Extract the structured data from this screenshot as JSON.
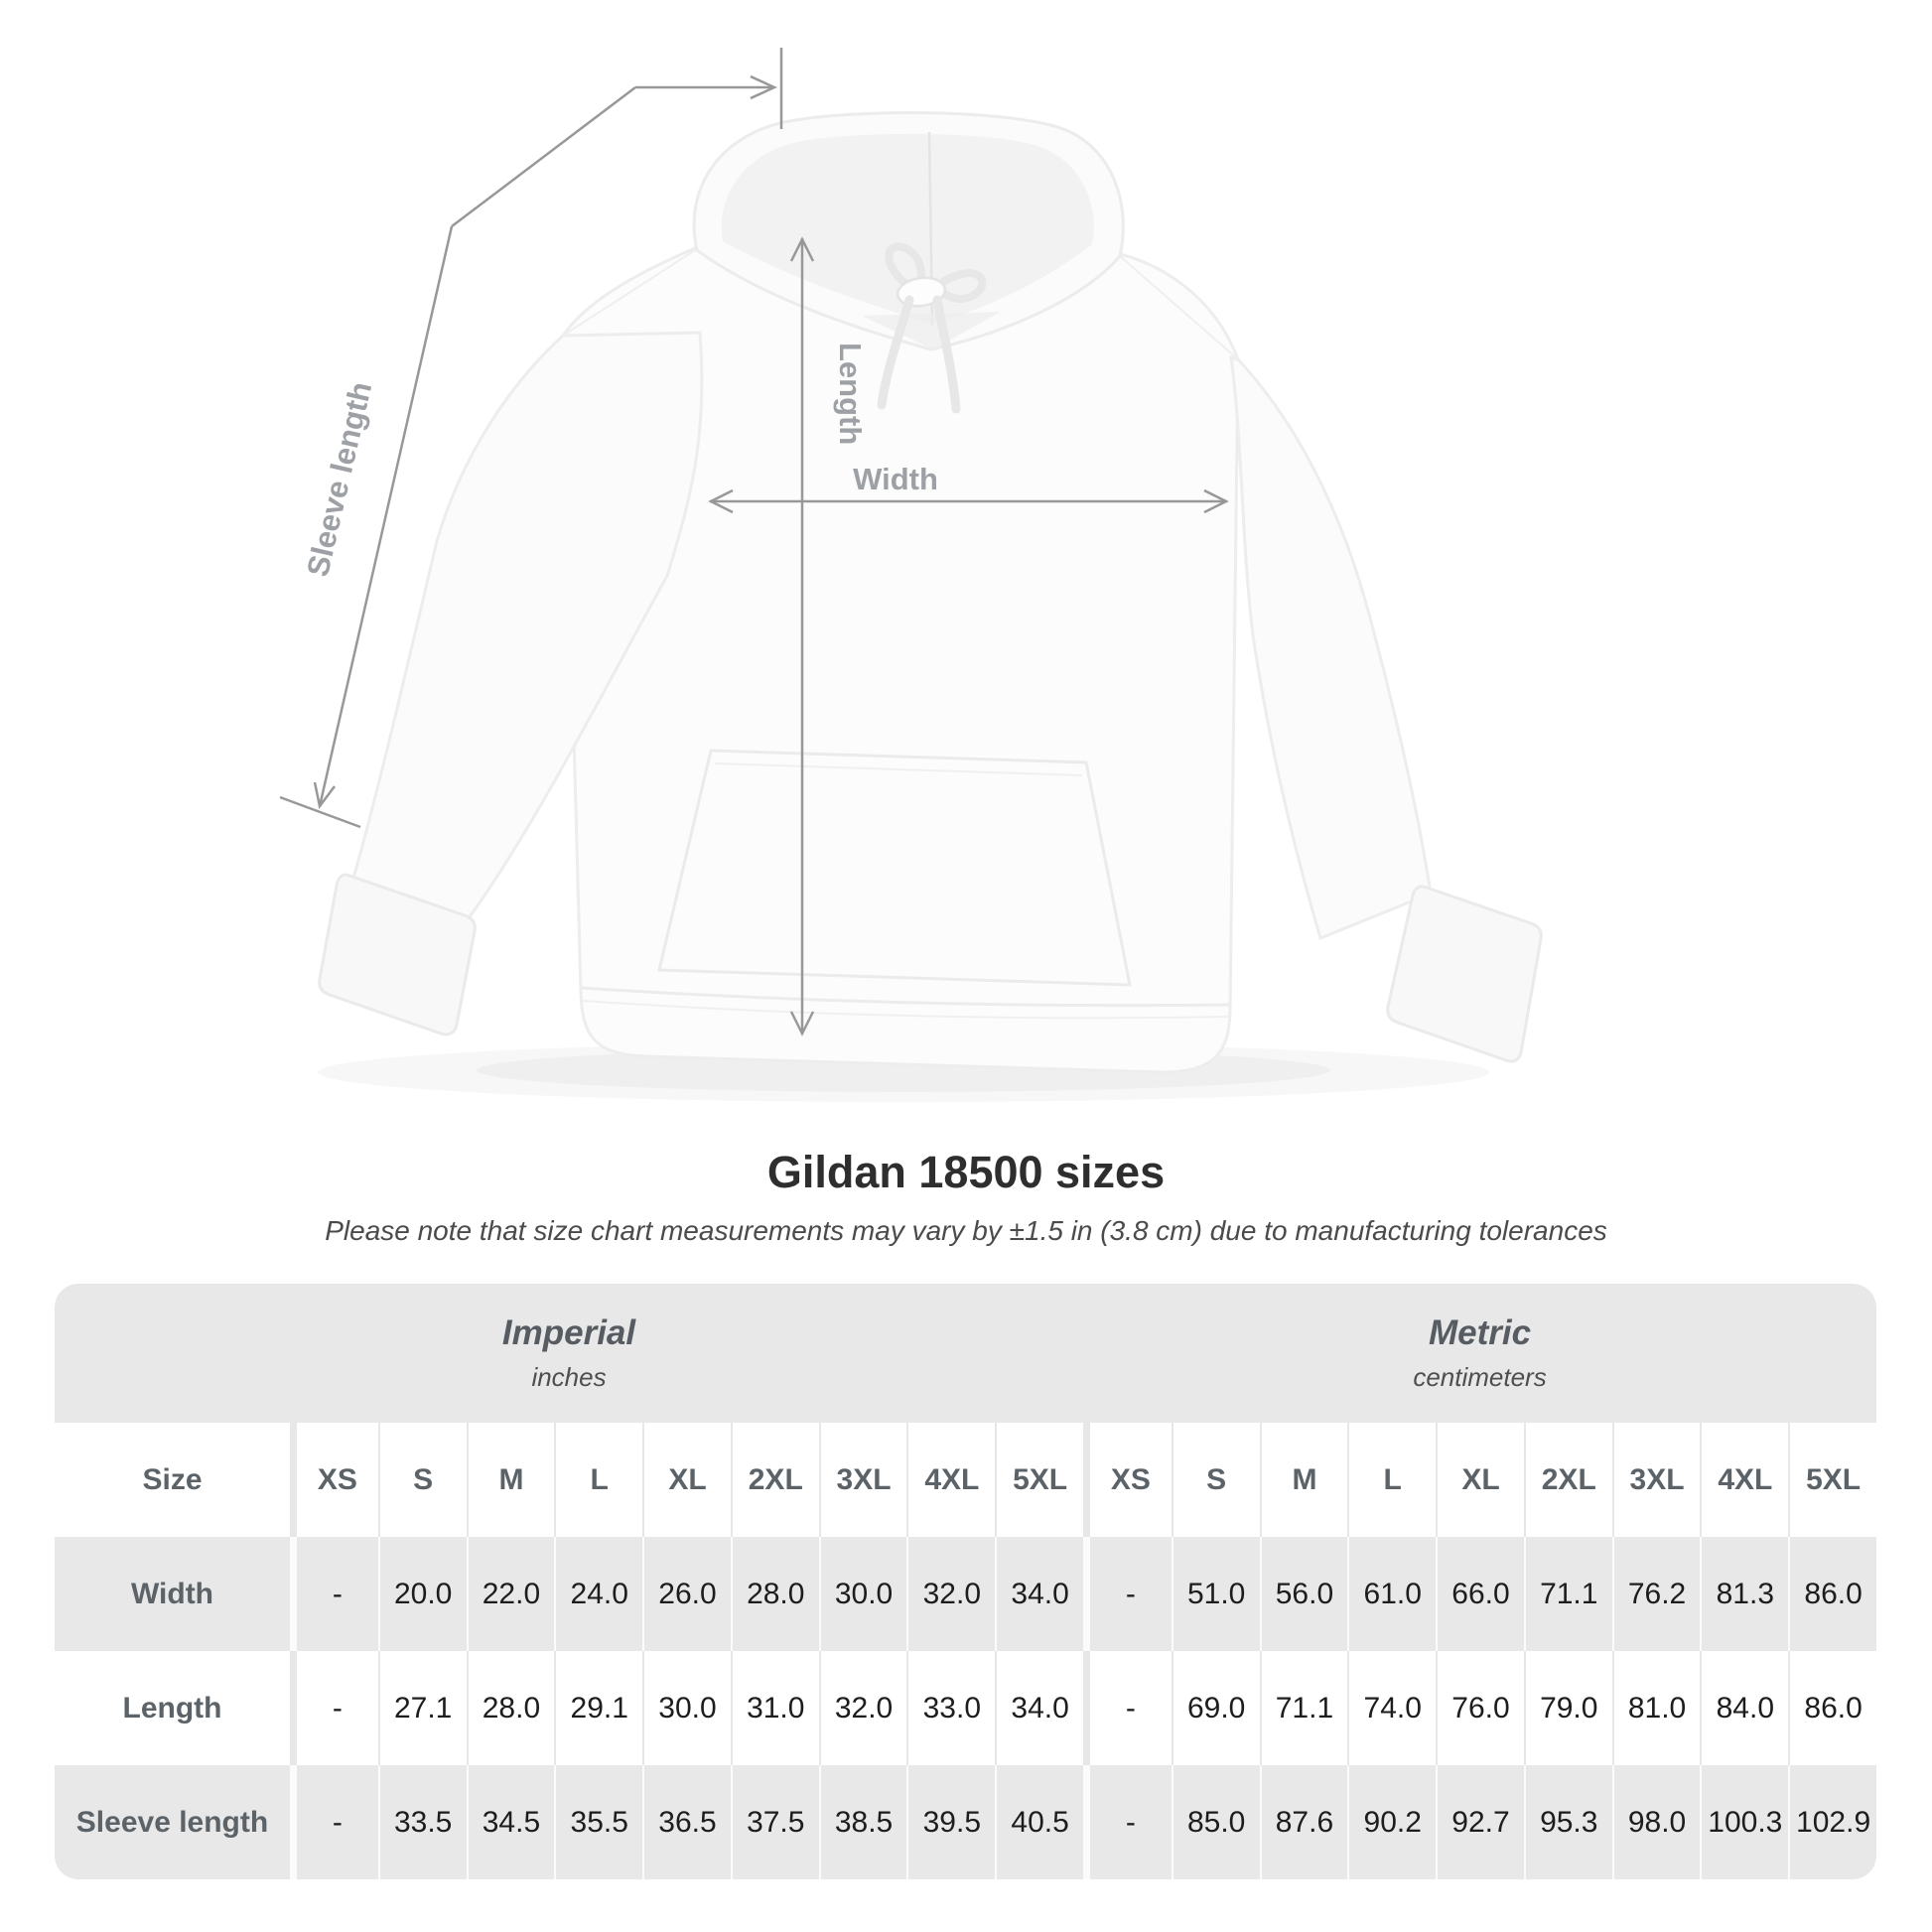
{
  "title": "Gildan 18500 sizes",
  "subtitle": "Please note that size chart measurements may vary by ±1.5 in (3.8 cm) due to manufacturing tolerances",
  "diagram": {
    "length_label": "Length",
    "width_label": "Width",
    "sleeve_label": "Sleeve length",
    "line_color": "#98989a",
    "label_color": "#9da1a5"
  },
  "table": {
    "size_header": "Size",
    "sizes": [
      "XS",
      "S",
      "M",
      "L",
      "XL",
      "2XL",
      "3XL",
      "4XL",
      "5XL"
    ],
    "unit_groups": [
      {
        "label": "Imperial",
        "sublabel": "inches"
      },
      {
        "label": "Metric",
        "sublabel": "centimeters"
      }
    ],
    "rows": [
      {
        "label": "Width",
        "imperial": [
          "-",
          "20.0",
          "22.0",
          "24.0",
          "26.0",
          "28.0",
          "30.0",
          "32.0",
          "34.0"
        ],
        "metric": [
          "-",
          "51.0",
          "56.0",
          "61.0",
          "66.0",
          "71.1",
          "76.2",
          "81.3",
          "86.0"
        ]
      },
      {
        "label": "Length",
        "imperial": [
          "-",
          "27.1",
          "28.0",
          "29.1",
          "30.0",
          "31.0",
          "32.0",
          "33.0",
          "34.0"
        ],
        "metric": [
          "-",
          "69.0",
          "71.1",
          "74.0",
          "76.0",
          "79.0",
          "81.0",
          "84.0",
          "86.0"
        ]
      },
      {
        "label": "Sleeve length",
        "imperial": [
          "-",
          "33.5",
          "34.5",
          "35.5",
          "36.5",
          "37.5",
          "38.5",
          "39.5",
          "40.5"
        ],
        "metric": [
          "-",
          "85.0",
          "87.6",
          "90.2",
          "92.7",
          "95.3",
          "98.0",
          "100.3",
          "102.9"
        ]
      }
    ],
    "colors": {
      "band_bg": "#e8e8e8",
      "shade_row_bg": "#e8e8e8",
      "header_text": "#5c6368",
      "value_text": "#1d1d1d"
    }
  },
  "chart_data": {
    "type": "table",
    "title": "Gildan 18500 sizes",
    "columns": [
      "Size",
      "XS",
      "S",
      "M",
      "L",
      "XL",
      "2XL",
      "3XL",
      "4XL",
      "5XL"
    ],
    "units": [
      "inches",
      "centimeters"
    ],
    "rows_inches": [
      [
        "Width",
        null,
        20.0,
        22.0,
        24.0,
        26.0,
        28.0,
        30.0,
        32.0,
        34.0
      ],
      [
        "Length",
        null,
        27.1,
        28.0,
        29.1,
        30.0,
        31.0,
        32.0,
        33.0,
        34.0
      ],
      [
        "Sleeve length",
        null,
        33.5,
        34.5,
        35.5,
        36.5,
        37.5,
        38.5,
        39.5,
        40.5
      ]
    ],
    "rows_centimeters": [
      [
        "Width",
        null,
        51.0,
        56.0,
        61.0,
        66.0,
        71.1,
        76.2,
        81.3,
        86.0
      ],
      [
        "Length",
        null,
        69.0,
        71.1,
        74.0,
        76.0,
        79.0,
        81.0,
        84.0,
        86.0
      ],
      [
        "Sleeve length",
        null,
        85.0,
        87.6,
        90.2,
        92.7,
        95.3,
        98.0,
        100.3,
        102.9
      ]
    ]
  }
}
